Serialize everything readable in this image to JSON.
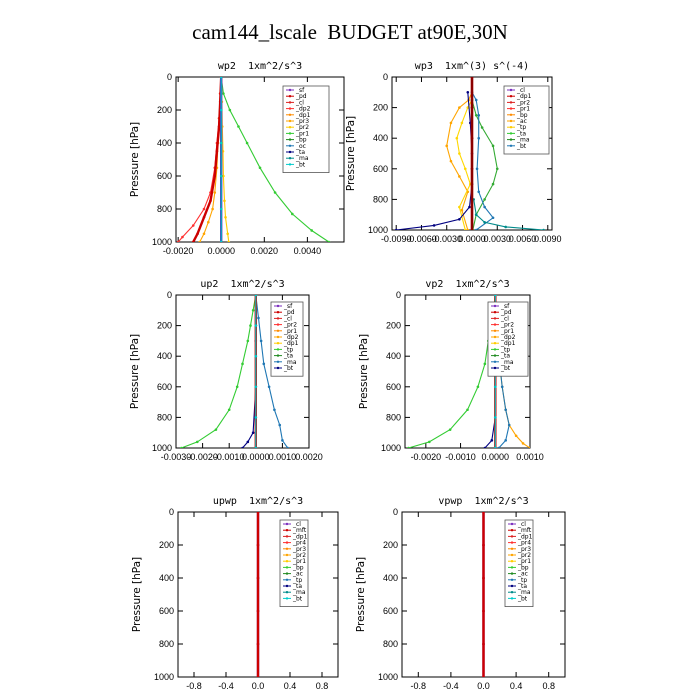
{
  "title": "cam144_lscale  BUDGET at90E,30N",
  "colors": {
    "axes": "#000000",
    "legend_box": "#555555"
  },
  "chart_data": [
    {
      "type": "line",
      "title": "wp2  1xm^2/s^3",
      "ylabel": "Pressure [hPa]",
      "xlim": [
        -0.0021,
        0.0057
      ],
      "ylim": [
        1000,
        0
      ],
      "yticks": [
        0,
        200,
        400,
        600,
        800,
        1000
      ],
      "xticks": [
        -0.002,
        0.0,
        0.002,
        0.004
      ],
      "xtick_labels": [
        "-0.0020",
        "0.0000",
        "0.0020",
        "0.0040"
      ],
      "legend": [
        "_sf",
        "_pd",
        "_cl",
        "_dp2",
        "_dp1",
        "_pr3",
        "_pr2",
        "_pr1",
        "_bp",
        "_oc",
        "_ta",
        "_ma",
        "_bt"
      ],
      "series": [
        {
          "name": "_bp",
          "color": "#33cc33",
          "x": [
            0,
            0.0001,
            0.0004,
            0.0008,
            0.0012,
            0.0018,
            0.0025,
            0.0033,
            0.0042,
            0.005
          ],
          "y": [
            0,
            100,
            200,
            300,
            400,
            550,
            700,
            830,
            930,
            1000
          ]
        },
        {
          "name": "_pr1",
          "color": "#ffa500",
          "x": [
            0,
            -5e-05,
            -0.0001,
            -0.00015,
            -0.0002,
            -0.0003,
            -0.0004,
            -0.0006,
            -0.0008,
            -0.001
          ],
          "y": [
            0,
            100,
            250,
            400,
            550,
            700,
            800,
            880,
            950,
            1000
          ]
        },
        {
          "name": "_pr2",
          "color": "#ffcc00",
          "x": [
            0,
            3e-05,
            5e-05,
            8e-05,
            0.0001,
            0.00015,
            0.0002,
            0.0003,
            0.00035
          ],
          "y": [
            0,
            150,
            300,
            450,
            600,
            750,
            850,
            950,
            1000
          ]
        },
        {
          "name": "_pr3",
          "color": "#ff3030",
          "x": [
            0,
            -5e-05,
            -0.0001,
            -0.0002,
            -0.0003,
            -0.0005,
            -0.0008,
            -0.0013,
            -0.0018,
            -0.002
          ],
          "y": [
            0,
            100,
            250,
            400,
            550,
            700,
            800,
            900,
            970,
            1000
          ]
        },
        {
          "name": "_dp1",
          "color": "#cc0000",
          "x": [
            0,
            -5e-05,
            -0.0001,
            -0.0002,
            -0.0003,
            -0.0005,
            -0.0008,
            -0.0011,
            -0.0013
          ],
          "y": [
            0,
            150,
            300,
            450,
            600,
            750,
            850,
            950,
            1000
          ]
        },
        {
          "name": "_cl",
          "color": "#7b2fbe",
          "x": [
            0,
            0,
            0,
            0,
            0,
            0
          ],
          "y": [
            0,
            200,
            400,
            600,
            800,
            1000
          ]
        },
        {
          "name": "_ta",
          "color": "#000080",
          "x": [
            0,
            0,
            0,
            0,
            0,
            0
          ],
          "y": [
            0,
            200,
            400,
            600,
            800,
            1000
          ]
        },
        {
          "name": "_bt",
          "color": "#00cccc",
          "x": [
            0,
            0,
            0,
            0,
            0,
            0
          ],
          "y": [
            0,
            200,
            400,
            600,
            800,
            1000
          ]
        }
      ]
    },
    {
      "type": "line",
      "title": "wp3  1xm^(3) s^(-4)",
      "ylabel": "Pressure [hPa]",
      "xlim": [
        -0.0095,
        0.0095
      ],
      "ylim": [
        1000,
        0
      ],
      "yticks": [
        0,
        200,
        400,
        600,
        800,
        1000
      ],
      "xticks": [
        -0.009,
        -0.006,
        -0.003,
        0.0,
        0.003,
        0.006,
        0.009
      ],
      "xtick_labels": [
        "-0.0090",
        "-0.0060",
        "-0.0030",
        "0.0000",
        "0.0030",
        "0.0060",
        "0.0090"
      ],
      "legend": [
        "_cl",
        "_dp1",
        "_pr2",
        "_pr1",
        "_bp",
        "_ac",
        "_tp",
        "_ta",
        "_ma",
        "_bt"
      ],
      "series": [
        {
          "name": "_pr1",
          "color": "#ffa500",
          "x": [
            0,
            -0.0004,
            -0.0015,
            -0.0025,
            -0.003,
            -0.0025,
            -0.0015,
            -0.0005,
            -0.0012,
            -0.0005
          ],
          "y": [
            100,
            150,
            200,
            300,
            450,
            550,
            650,
            750,
            870,
            1000
          ]
        },
        {
          "name": "_pr2",
          "color": "#ffd700",
          "x": [
            0,
            -0.0005,
            -0.0012,
            -0.0018,
            -0.0015,
            -0.0008,
            -0.0002,
            -0.0015,
            -0.0008
          ],
          "y": [
            150,
            200,
            300,
            400,
            500,
            600,
            700,
            850,
            1000
          ]
        },
        {
          "name": "_bp",
          "color": "#33aa33",
          "x": [
            0,
            0.0005,
            0.0012,
            0.0025,
            0.003,
            0.0025,
            0.0015,
            0.0005,
            0.0001
          ],
          "y": [
            150,
            250,
            330,
            450,
            600,
            700,
            800,
            900,
            1000
          ]
        },
        {
          "name": "_tp",
          "color": "#1f77b4",
          "x": [
            0,
            0.0005,
            0.0008,
            0.0008,
            0.0006,
            0.0008,
            0.0015,
            0.0025,
            0.0005
          ],
          "y": [
            100,
            150,
            250,
            400,
            600,
            750,
            850,
            920,
            1000
          ]
        },
        {
          "name": "_ta",
          "color": "#000080",
          "x": [
            -0.0005,
            -0.0002,
            0,
            0,
            -0.0003,
            -0.0015,
            -0.0045,
            -0.009
          ],
          "y": [
            100,
            300,
            500,
            700,
            850,
            930,
            970,
            1000
          ]
        },
        {
          "name": "_dp1",
          "color": "#dd2222",
          "x": [
            0,
            0,
            0,
            0,
            0,
            0
          ],
          "y": [
            0,
            200,
            400,
            600,
            800,
            1000
          ]
        },
        {
          "name": "_ma",
          "color": "#008b8b",
          "x": [
            0.0002,
            0.0005,
            0.0015,
            0.004,
            0.0085
          ],
          "y": [
            800,
            900,
            950,
            980,
            1000
          ]
        },
        {
          "name": "_cl",
          "color": "#8b0000",
          "x": [
            0,
            0,
            0,
            0,
            0,
            0
          ],
          "y": [
            0,
            200,
            400,
            600,
            800,
            1000
          ]
        }
      ]
    },
    {
      "type": "line",
      "title": "up2  1xm^2/s^3",
      "ylabel": "Pressure [hPa]",
      "xlim": [
        -0.003,
        0.002
      ],
      "ylim": [
        1000,
        0
      ],
      "yticks": [
        0,
        200,
        400,
        600,
        800,
        1000
      ],
      "xticks": [
        -0.003,
        -0.002,
        -0.001,
        0.0,
        0.001,
        0.002
      ],
      "xtick_labels": [
        "-0.0030",
        "-0.0020",
        "-0.0010",
        "0.0000",
        "0.0010",
        "0.0020"
      ],
      "legend": [
        "_sf",
        "_pd",
        "_cl",
        "_pr2",
        "_pr1",
        "_dp2",
        "_dp1",
        "_tp",
        "_ta",
        "_ma",
        "_bt"
      ],
      "series": [
        {
          "name": "_dp2",
          "color": "#33cc33",
          "x": [
            0,
            -0.0001,
            -0.0002,
            -0.0003,
            -0.0005,
            -0.0007,
            -0.001,
            -0.0015,
            -0.0022,
            -0.0028
          ],
          "y": [
            0,
            100,
            200,
            300,
            450,
            600,
            750,
            880,
            960,
            1000
          ]
        },
        {
          "name": "_tp",
          "color": "#1f77b4",
          "x": [
            0,
            0.0001,
            0.0002,
            0.0003,
            0.0005,
            0.0007,
            0.0009,
            0.001,
            0.0012
          ],
          "y": [
            0,
            150,
            300,
            450,
            600,
            750,
            850,
            950,
            1000
          ]
        },
        {
          "name": "_ta",
          "color": "#000080",
          "x": [
            0,
            0,
            0,
            -0.0001,
            -0.0003,
            -0.0005
          ],
          "y": [
            0,
            300,
            600,
            900,
            960,
            1000
          ]
        },
        {
          "name": "_sf",
          "color": "#7b2fbe",
          "x": [
            0,
            0,
            0,
            0,
            0,
            0
          ],
          "y": [
            0,
            200,
            400,
            600,
            800,
            1000
          ]
        },
        {
          "name": "_pd",
          "color": "#cc0000",
          "x": [
            0,
            0,
            0,
            0,
            0,
            0
          ],
          "y": [
            0,
            200,
            400,
            600,
            800,
            1000
          ]
        },
        {
          "name": "_bt",
          "color": "#00cccc",
          "x": [
            0,
            0,
            0,
            0,
            0,
            0
          ],
          "y": [
            0,
            200,
            400,
            600,
            800,
            1000
          ]
        }
      ]
    },
    {
      "type": "line",
      "title": "vp2  1xm^2/s^3",
      "ylabel": "Pressure [hPa]",
      "xlim": [
        -0.0026,
        0.001
      ],
      "ylim": [
        1000,
        0
      ],
      "yticks": [
        0,
        200,
        400,
        600,
        800,
        1000
      ],
      "xticks": [
        -0.002,
        -0.001,
        0.0,
        0.001
      ],
      "xtick_labels": [
        "-0.0020",
        "-0.0010",
        "0.0000",
        "0.0010"
      ],
      "legend": [
        "_sf",
        "_pd",
        "_cl",
        "_pr2",
        "_pr1",
        "_dp2",
        "_dp1",
        "_tp",
        "_ta",
        "_ma",
        "_bt"
      ],
      "series": [
        {
          "name": "_dp2",
          "color": "#33cc33",
          "x": [
            0,
            -5e-05,
            -0.0001,
            -0.0002,
            -0.0003,
            -0.0005,
            -0.0008,
            -0.0013,
            -0.0019,
            -0.0025
          ],
          "y": [
            0,
            100,
            200,
            300,
            450,
            600,
            750,
            880,
            960,
            1000
          ]
        },
        {
          "name": "_pr2",
          "color": "#ffa500",
          "x": [
            0,
            5e-05,
            0.0001,
            0.0002,
            0.0003,
            0.0004,
            0.0006,
            0.0008,
            0.001
          ],
          "y": [
            0,
            200,
            400,
            600,
            750,
            850,
            920,
            970,
            1000
          ]
        },
        {
          "name": "_tp",
          "color": "#1f77b4",
          "x": [
            0,
            5e-05,
            0.0001,
            0.0002,
            0.0003,
            0.0004,
            0.0003,
            0.0001
          ],
          "y": [
            0,
            200,
            400,
            600,
            750,
            850,
            950,
            1000
          ]
        },
        {
          "name": "_ta",
          "color": "#000080",
          "x": [
            0,
            0,
            0,
            -0.0001,
            -0.0003
          ],
          "y": [
            0,
            400,
            800,
            950,
            1000
          ]
        },
        {
          "name": "_sf",
          "color": "#7b2fbe",
          "x": [
            0,
            0,
            0,
            0,
            0,
            0
          ],
          "y": [
            0,
            200,
            400,
            600,
            800,
            1000
          ]
        },
        {
          "name": "_pd",
          "color": "#cc0000",
          "x": [
            0,
            0,
            0,
            0,
            0,
            0
          ],
          "y": [
            0,
            200,
            400,
            600,
            800,
            1000
          ]
        },
        {
          "name": "_bt",
          "color": "#00cccc",
          "x": [
            0,
            0,
            0,
            0,
            0,
            0
          ],
          "y": [
            0,
            200,
            400,
            600,
            800,
            1000
          ]
        }
      ]
    },
    {
      "type": "line",
      "title": "upwp  1xm^2/s^3",
      "ylabel": "Pressure [hPa]",
      "xlim": [
        -1.0,
        1.0
      ],
      "ylim": [
        1000,
        0
      ],
      "yticks": [
        0,
        200,
        400,
        600,
        800,
        1000
      ],
      "xticks": [
        -0.8,
        -0.4,
        0.0,
        0.4,
        0.8
      ],
      "xtick_labels": [
        "-0.8",
        "-0.4",
        "0.0",
        "0.4",
        "0.8"
      ],
      "legend": [
        "_cl",
        "_mft",
        "_dp1",
        "_pr4",
        "_pr3",
        "_pr2",
        "_pr1",
        "_bp",
        "_ac",
        "_tp",
        "_ta",
        "_ma",
        "_bt"
      ],
      "series": [
        {
          "name": "_cl",
          "color": "#7b2fbe",
          "x": [
            0,
            0,
            0,
            0,
            0,
            0
          ],
          "y": [
            0,
            200,
            400,
            600,
            800,
            1000
          ]
        },
        {
          "name": "_dp1",
          "color": "#cc0000",
          "x": [
            0,
            0,
            0,
            0,
            0,
            0
          ],
          "y": [
            0,
            200,
            400,
            600,
            800,
            1000
          ]
        }
      ]
    },
    {
      "type": "line",
      "title": "vpwp  1xm^2/s^3",
      "ylabel": "Pressure [hPa]",
      "xlim": [
        -1.0,
        1.0
      ],
      "ylim": [
        1000,
        0
      ],
      "yticks": [
        0,
        200,
        400,
        600,
        800,
        1000
      ],
      "xticks": [
        -0.8,
        -0.4,
        0.0,
        0.4,
        0.8
      ],
      "xtick_labels": [
        "-0.8",
        "-0.4",
        "0.0",
        "0.4",
        "0.8"
      ],
      "legend": [
        "_cl",
        "_mft",
        "_dp1",
        "_pr4",
        "_pr3",
        "_pr2",
        "_pr1",
        "_bp",
        "_ac",
        "_tp",
        "_ta",
        "_ma",
        "_bt"
      ],
      "series": [
        {
          "name": "_cl",
          "color": "#7b2fbe",
          "x": [
            0,
            0,
            0,
            0,
            0,
            0
          ],
          "y": [
            0,
            200,
            400,
            600,
            800,
            1000
          ]
        },
        {
          "name": "_dp1",
          "color": "#cc0000",
          "x": [
            0,
            0,
            0,
            0,
            0,
            0
          ],
          "y": [
            0,
            200,
            400,
            600,
            800,
            1000
          ]
        }
      ]
    }
  ]
}
